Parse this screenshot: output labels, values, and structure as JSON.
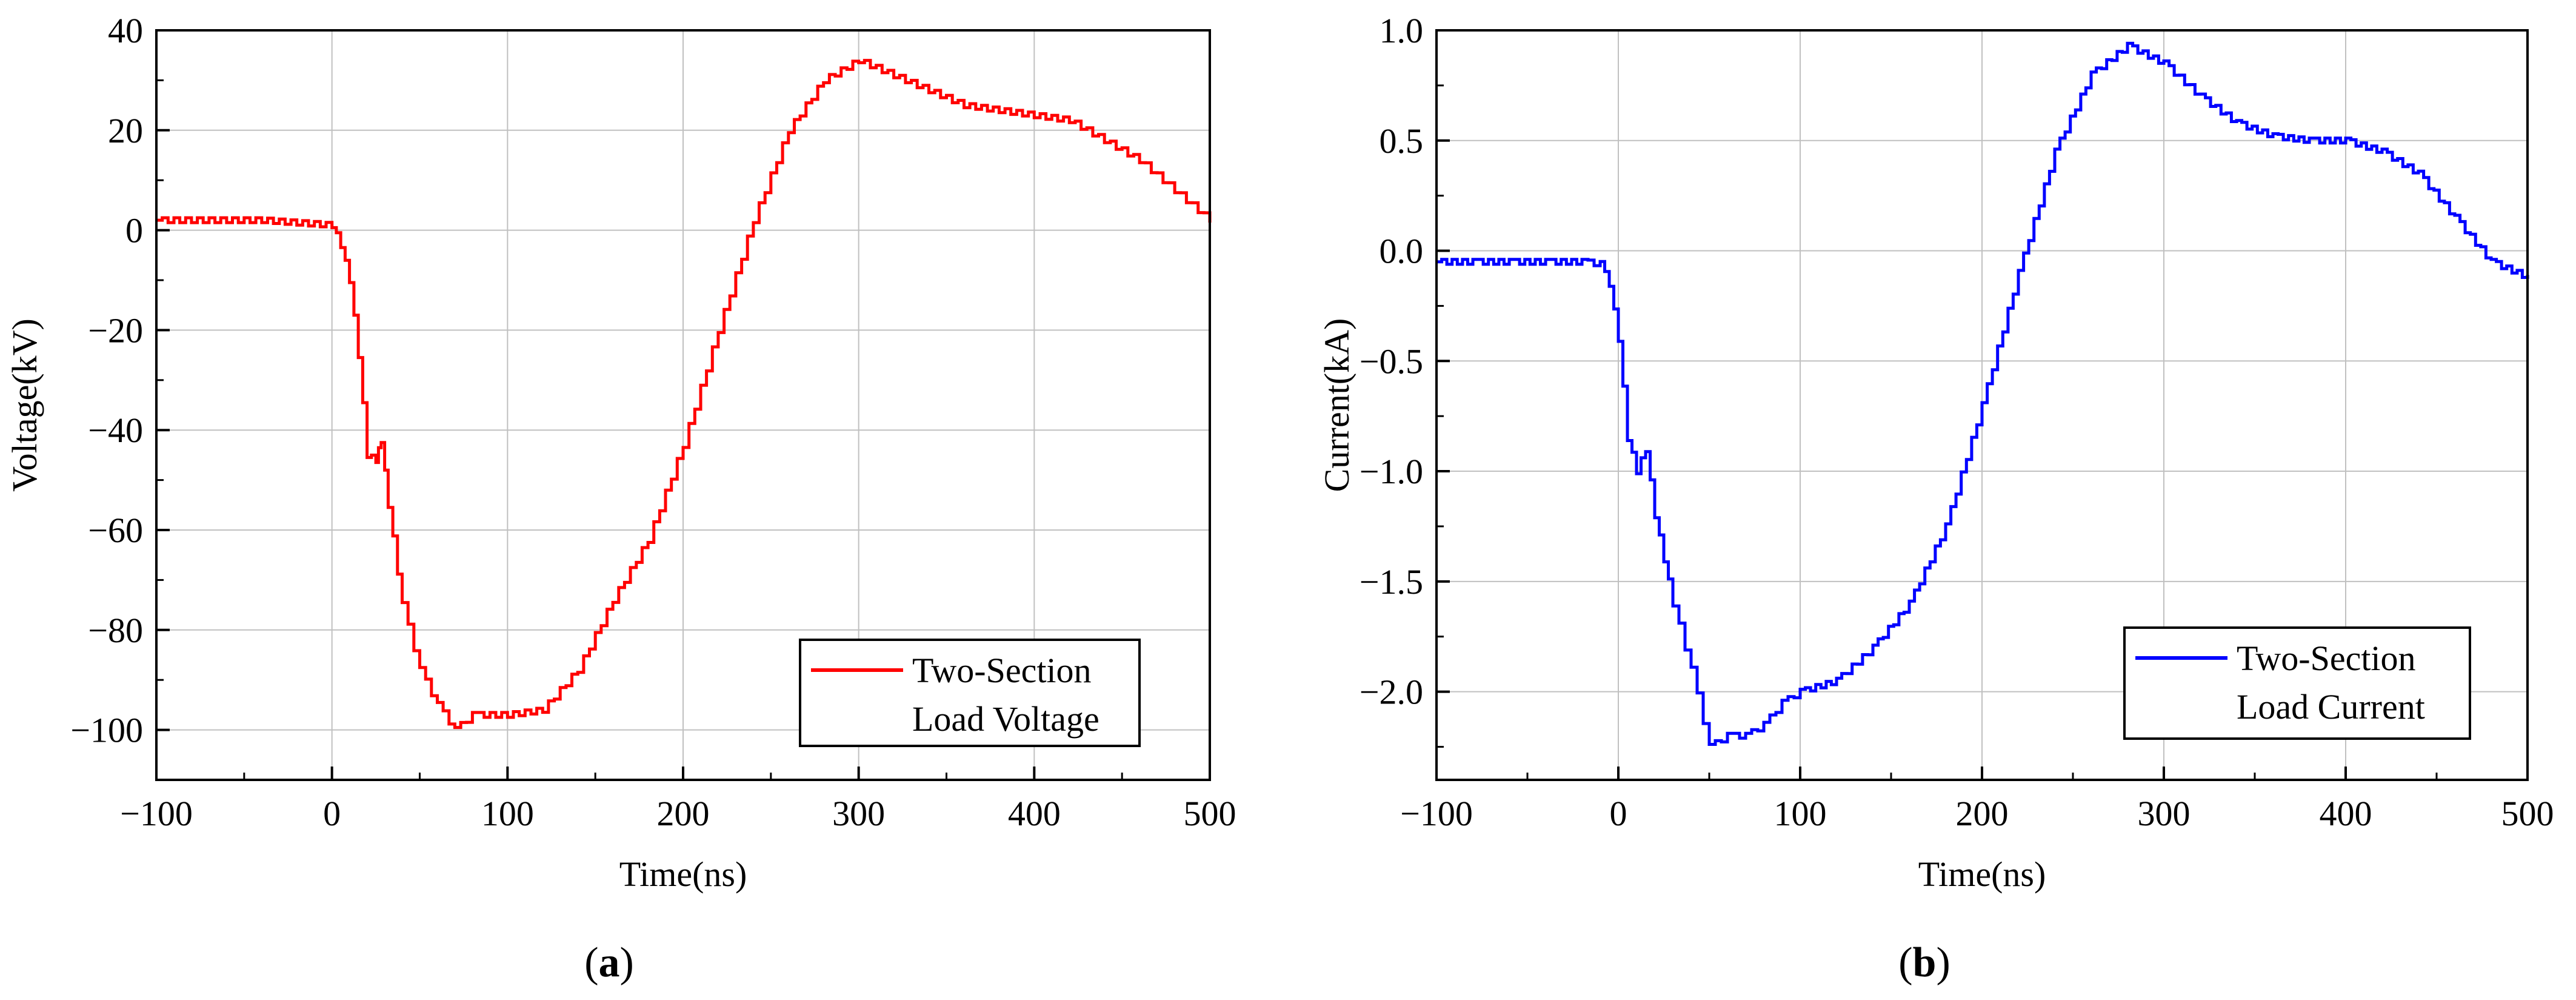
{
  "panels": [
    {
      "id": "a",
      "caption": {
        "open": "(",
        "letter": "a",
        "close": ")"
      },
      "chart_data": {
        "type": "line",
        "title": "",
        "xlabel": "Time(ns)",
        "ylabel": "Voltage(kV)",
        "xlim": [
          -100,
          500
        ],
        "ylim": [
          -110,
          40
        ],
        "xticks": [
          -100,
          0,
          100,
          200,
          300,
          400,
          500
        ],
        "yticks": [
          -100,
          -80,
          -60,
          -40,
          -20,
          0,
          20,
          40
        ],
        "xtick_labels": [
          "−100",
          "0",
          "100",
          "200",
          "300",
          "400",
          "500"
        ],
        "ytick_labels": [
          "−100",
          "−80",
          "−60",
          "−40",
          "−20",
          "0",
          "20",
          "40"
        ],
        "grid": true,
        "legend": {
          "position": "bottom-right",
          "lines": [
            "Two-Section",
            "Load Voltage"
          ]
        },
        "series": [
          {
            "name": "Two-Section Load Voltage",
            "color": "#ff0000",
            "x": [
              -100,
              -80,
              -60,
              -40,
              -20,
              0,
              5,
              10,
              15,
              20,
              25,
              28,
              32,
              40,
              50,
              60,
              70,
              80,
              100,
              120,
              140,
              160,
              180,
              200,
              220,
              240,
              260,
              280,
              300,
              320,
              340,
              360,
              380,
              400,
              420,
              440,
              460,
              480,
              500
            ],
            "y": [
              2,
              2,
              2,
              2,
              1.5,
              1,
              -3,
              -10,
              -25,
              -45,
              -46,
              -42,
              -55,
              -75,
              -88,
              -95,
              -100,
              -97,
              -97,
              -96,
              -88,
              -74,
              -62,
              -43,
              -20,
              2,
              20,
              30,
              34,
              31,
              28,
              25,
              24,
              23,
              22,
              18,
              14,
              8,
              2
            ]
          }
        ]
      }
    },
    {
      "id": "b",
      "caption": {
        "open": "(",
        "letter": "b",
        "close": ")"
      },
      "chart_data": {
        "type": "line",
        "title": "",
        "xlabel": "Time(ns)",
        "ylabel": "Current(kA)",
        "xlim": [
          -100,
          500
        ],
        "ylim": [
          -2.4,
          1.0
        ],
        "xticks": [
          -100,
          0,
          100,
          200,
          300,
          400,
          500
        ],
        "yticks": [
          -2.0,
          -1.5,
          -1.0,
          -0.5,
          0.0,
          0.5,
          1.0
        ],
        "xtick_labels": [
          "−100",
          "0",
          "100",
          "200",
          "300",
          "400",
          "500"
        ],
        "ytick_labels": [
          "−2.0",
          "−1.5",
          "−1.0",
          "−0.5",
          "0.0",
          "0.5",
          "1.0"
        ],
        "grid": true,
        "legend": {
          "position": "bottom-right",
          "lines": [
            "Two-Section",
            "Load Current"
          ]
        },
        "series": [
          {
            "name": "Two-Section Load Current",
            "color": "#0000ff",
            "x": [
              -100,
              -80,
              -60,
              -40,
              -20,
              -10,
              -5,
              0,
              5,
              10,
              15,
              20,
              25,
              30,
              40,
              50,
              60,
              70,
              80,
              90,
              100,
              120,
              140,
              160,
              180,
              200,
              220,
              240,
              260,
              280,
              300,
              320,
              340,
              360,
              380,
              400,
              420,
              440,
              460,
              480,
              500
            ],
            "y": [
              -0.05,
              -0.05,
              -0.05,
              -0.05,
              -0.05,
              -0.06,
              -0.15,
              -0.4,
              -0.85,
              -1.0,
              -0.9,
              -1.2,
              -1.4,
              -1.6,
              -1.9,
              -2.25,
              -2.2,
              -2.2,
              -2.15,
              -2.05,
              -2.0,
              -1.95,
              -1.8,
              -1.6,
              -1.25,
              -0.7,
              -0.1,
              0.45,
              0.8,
              0.93,
              0.85,
              0.7,
              0.58,
              0.52,
              0.5,
              0.5,
              0.45,
              0.35,
              0.15,
              -0.05,
              -0.12
            ]
          }
        ]
      }
    }
  ]
}
